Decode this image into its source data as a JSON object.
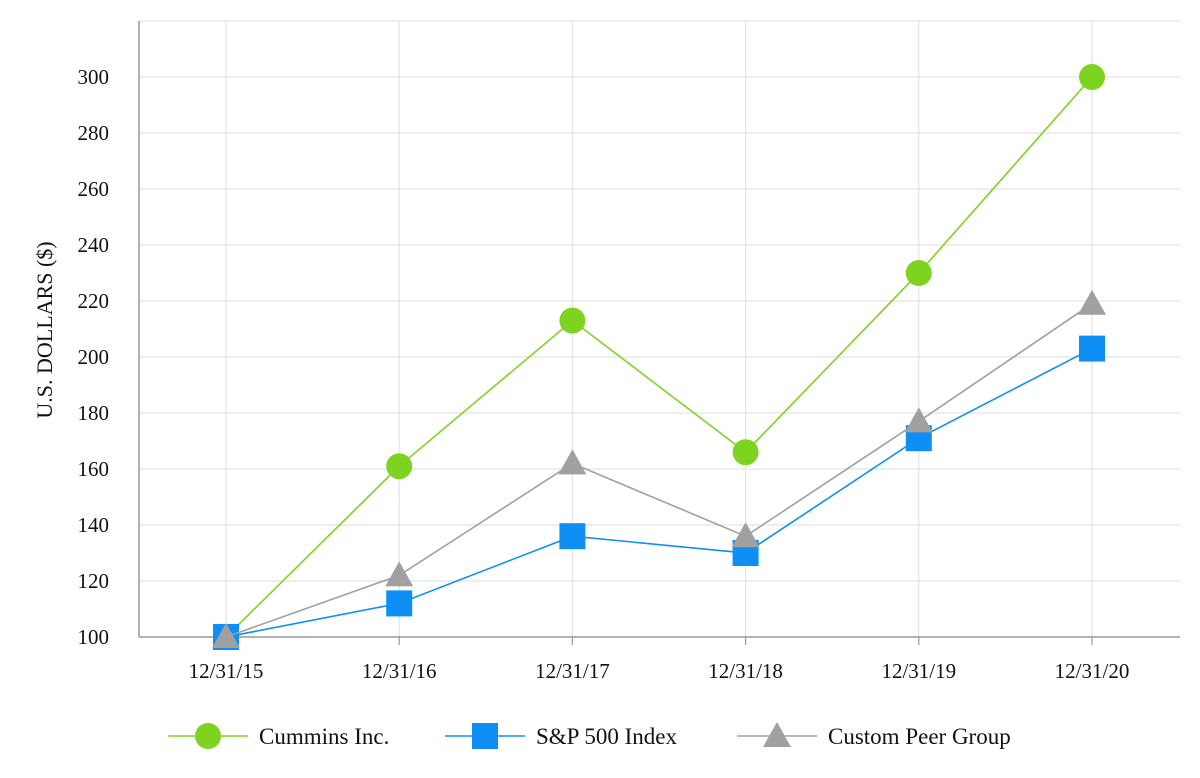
{
  "chart_data": {
    "type": "line",
    "title": "",
    "xlabel": "",
    "ylabel": "U.S. DOLLARS ($)",
    "categories": [
      "12/31/15",
      "12/31/16",
      "12/31/17",
      "12/31/18",
      "12/31/19",
      "12/31/20"
    ],
    "y_ticks": [
      100,
      120,
      140,
      160,
      180,
      200,
      220,
      240,
      260,
      280,
      300
    ],
    "ylim": [
      100,
      320
    ],
    "grid": true,
    "legend_position": "bottom",
    "series": [
      {
        "name": "Cummins Inc.",
        "marker": "circle",
        "color": "#7ed321",
        "values": [
          100,
          161,
          213,
          166,
          230,
          300
        ]
      },
      {
        "name": "S&P 500 Index",
        "marker": "square",
        "color": "#0f8ff3",
        "values": [
          100,
          112,
          136,
          130,
          171,
          203
        ]
      },
      {
        "name": "Custom Peer Group",
        "marker": "triangle",
        "color": "#a0a0a0",
        "values": [
          100,
          122,
          162,
          136,
          177,
          219
        ]
      }
    ]
  }
}
